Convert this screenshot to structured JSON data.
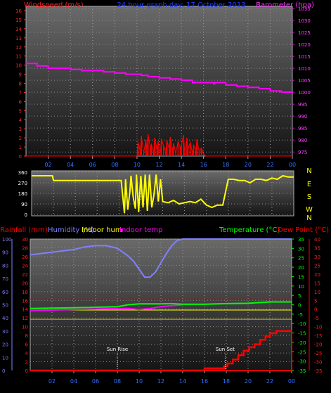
{
  "chart_data": [
    {
      "type": "line",
      "title": "24 hour graph day: 17 October 2013",
      "left_axis_label": "Windspeed (m/s)",
      "right_axis_label": "Barometer (hpa)",
      "x_ticks": [
        "02",
        "04",
        "06",
        "08",
        "10",
        "12",
        "14",
        "16",
        "18",
        "20",
        "22",
        "00"
      ],
      "left_ticks": [
        "0",
        "1",
        "2",
        "3",
        "4",
        "5",
        "6",
        "7",
        "8",
        "9",
        "10",
        "11",
        "12",
        "13",
        "14",
        "15",
        "16"
      ],
      "right_ticks": [
        "975",
        "980",
        "985",
        "990",
        "995",
        "1000",
        "1005",
        "1010",
        "1015",
        "1020",
        "1025",
        "1030",
        "1035"
      ],
      "left_range": [
        0,
        16
      ],
      "right_range": [
        973.3,
        1035
      ],
      "hour_range": [
        0,
        24
      ],
      "series": [
        {
          "color": "#ff00ff",
          "axis": "right",
          "x": [
            0,
            1,
            2,
            3,
            4,
            5,
            6,
            7,
            7.9,
            8,
            9,
            10,
            10.4,
            11,
            12,
            13,
            14,
            14.9,
            15,
            16,
            16.9,
            17,
            17.6,
            18,
            19,
            20,
            20.5,
            21,
            22,
            23,
            24
          ],
          "y": [
            1012,
            1011,
            1010,
            1010,
            1009.5,
            1009,
            1009,
            1008.5,
            1008.5,
            1008,
            1007.5,
            1007.5,
            1007,
            1006.5,
            1006,
            1005.5,
            1005,
            1005,
            1004,
            1004,
            1003.5,
            1004,
            1004,
            1003,
            1002.5,
            1002,
            1002,
            1001.5,
            1000.5,
            1000,
            999.5
          ]
        },
        {
          "color": "#ff0000",
          "axis": "left",
          "x": [
            0,
            10.0,
            10.1,
            10.3,
            10.4,
            10.6,
            10.8,
            10.9,
            11.0,
            11.2,
            11.3,
            11.5,
            11.6,
            11.8,
            11.9,
            12.1,
            12.2,
            12.4,
            12.6,
            12.7,
            12.9,
            13.0,
            13.2,
            13.3,
            13.5,
            13.7,
            13.9,
            14.0,
            14.2,
            14.3,
            14.5,
            14.6,
            14.8,
            15.0,
            15.1,
            15.3,
            15.4,
            15.6,
            15.8,
            16.0,
            16.2,
            24
          ],
          "y": [
            0,
            0,
            1.5,
            0.5,
            2.2,
            0.3,
            1.8,
            0.6,
            2.4,
            0.9,
            1.3,
            0.4,
            2.0,
            0.7,
            1.6,
            0.2,
            1.9,
            1.1,
            0.5,
            1.7,
            0.8,
            2.1,
            0.6,
            1.4,
            0.3,
            1.6,
            0.9,
            1.2,
            2.3,
            0.4,
            2.0,
            0.8,
            1.5,
            0.3,
            1.2,
            0.6,
            1.8,
            0.5,
            0.9,
            0.2,
            0,
            0
          ]
        }
      ]
    },
    {
      "type": "line",
      "title": "",
      "left_ticks": [
        "0",
        "90",
        "180",
        "270",
        "360"
      ],
      "right_ticks": [
        "N",
        "W",
        "S",
        "E",
        "N"
      ],
      "range": [
        0,
        360
      ],
      "hour_range": [
        0,
        24
      ],
      "series": [
        {
          "color": "#ffff00",
          "x": [
            0,
            1.9,
            2,
            4,
            6,
            8,
            8.2,
            8.4,
            8.5,
            8.6,
            8.8,
            9.0,
            9.1,
            9.3,
            9.5,
            9.6,
            9.8,
            10.0,
            10.2,
            10.4,
            10.6,
            10.8,
            11.0,
            11.2,
            11.4,
            11.6,
            11.8,
            12,
            12.5,
            13,
            13.5,
            14,
            14.5,
            15,
            15.5,
            16,
            16.5,
            17,
            17.5,
            18,
            18.5,
            19,
            19.5,
            20,
            20.5,
            21,
            21.5,
            22,
            22.5,
            23,
            23.5,
            24
          ],
          "y": [
            330,
            330,
            290,
            290,
            290,
            290,
            290,
            100,
            10,
            300,
            40,
            200,
            330,
            150,
            50,
            340,
            20,
            330,
            60,
            340,
            30,
            340,
            60,
            170,
            340,
            110,
            300,
            110,
            100,
            120,
            90,
            100,
            110,
            100,
            130,
            80,
            60,
            80,
            80,
            300,
            300,
            290,
            290,
            270,
            300,
            300,
            290,
            310,
            300,
            330,
            320,
            320
          ]
        }
      ]
    },
    {
      "type": "line",
      "title": "",
      "legend": [
        {
          "label": "Rainfall (mm)",
          "color": "#ff0000"
        },
        {
          "label": "Humidity (%)",
          "color": "#8080ff"
        },
        {
          "label": "Indoor hum",
          "color": "#ffff00"
        },
        {
          "label": "Indoor temp",
          "color": "#ff00ff"
        },
        {
          "label": "Temperature (°C)",
          "color": "#00ff00"
        },
        {
          "label": "Dew Point (°C)",
          "color": "#ff0000"
        }
      ],
      "rain_ticks": [
        "0",
        "2",
        "4",
        "6",
        "8",
        "10",
        "12",
        "14",
        "16",
        "18",
        "20",
        "22",
        "24",
        "26",
        "28",
        "30"
      ],
      "humidity_ticks": [
        "0",
        "10",
        "20",
        "30",
        "40",
        "50",
        "60",
        "70",
        "80",
        "90",
        "100"
      ],
      "temp_ticks": [
        "35",
        "30",
        "25",
        "20",
        "15",
        "10",
        "5",
        "0",
        "-5",
        "-10",
        "-15",
        "-20",
        "-25",
        "-30",
        "-35"
      ],
      "dew_ticks": [
        "40",
        "35",
        "30",
        "25",
        "20",
        "15",
        "10",
        "5",
        "0",
        "-5",
        "-10",
        "-15",
        "-20",
        "-25",
        "-30",
        "-35"
      ],
      "rain_range": [
        0,
        30
      ],
      "temp_range": [
        -35,
        35
      ],
      "hour_range": [
        0,
        24
      ],
      "x_ticks": [
        "02",
        "04",
        "06",
        "08",
        "10",
        "12",
        "14",
        "16",
        "18",
        "20",
        "22",
        "00"
      ],
      "annotations": [
        {
          "label": "Sun Rise",
          "hour": 8.0
        },
        {
          "label": "Sun Set",
          "hour": 17.9
        }
      ],
      "series": [
        {
          "name": "Humidity (%)",
          "color": "#8080ff",
          "axis": "humidity",
          "x": [
            0,
            1,
            2,
            3,
            4,
            5,
            6,
            7,
            8,
            8.5,
            9,
            9.5,
            10,
            10.5,
            11,
            11.5,
            12,
            12.5,
            13,
            13.5,
            14,
            14.5,
            24
          ],
          "y": [
            88,
            89,
            90,
            91,
            92,
            94,
            95,
            95,
            93,
            90,
            87,
            83,
            77,
            71,
            71,
            75,
            82,
            89,
            95,
            99,
            100,
            100,
            100
          ]
        },
        {
          "name": "Indoor hum",
          "color": "#ffff00",
          "axis": "humidity",
          "x": [
            0,
            24
          ],
          "y": [
            46,
            46
          ]
        },
        {
          "name": "Indoor temp",
          "color": "#ff00ff",
          "axis": "temp",
          "x": [
            0,
            2,
            4,
            6,
            8,
            9,
            10,
            11,
            12,
            13,
            14
          ],
          "y": [
            -3,
            -2.8,
            -2.5,
            -2.3,
            -2,
            -2,
            -2.5,
            -2,
            -1,
            -0.5,
            0
          ]
        },
        {
          "name": "Temperature (°C)",
          "color": "#00ff00",
          "axis": "temp",
          "x": [
            0,
            2,
            4,
            6,
            8,
            9,
            10,
            11,
            12,
            13,
            14,
            16,
            18,
            20,
            22,
            24
          ],
          "y": [
            -2,
            -1.8,
            -1.6,
            -1.3,
            -1,
            0,
            0.5,
            0.5,
            0.5,
            0.6,
            0.3,
            0.3,
            0.6,
            0.8,
            1.5,
            1.5
          ]
        },
        {
          "name": "Dew Point (°C)",
          "color": "#ff0000",
          "axis": "temp",
          "x": [
            0,
            24
          ],
          "y": [
            -35,
            -35
          ]
        },
        {
          "name": "Rainfall (mm)",
          "color": "#ff0000",
          "axis": "rain",
          "step": true,
          "x": [
            0,
            15.9,
            16,
            17.8,
            18.1,
            18.6,
            19.1,
            19.6,
            20.1,
            20.6,
            21.1,
            21.6,
            22,
            22.6,
            23,
            24
          ],
          "y": [
            0,
            0,
            0.5,
            1.0,
            1.6,
            2.5,
            3.5,
            4.5,
            5.3,
            6.0,
            7.0,
            7.8,
            8.5,
            9.0,
            9.0,
            9.0
          ]
        }
      ],
      "ref_lines": [
        {
          "color": "#d00000",
          "axis": "rain",
          "value": 16.3
        },
        {
          "color": "#c0c000",
          "axis": "rain",
          "value": 11.7
        }
      ]
    }
  ]
}
